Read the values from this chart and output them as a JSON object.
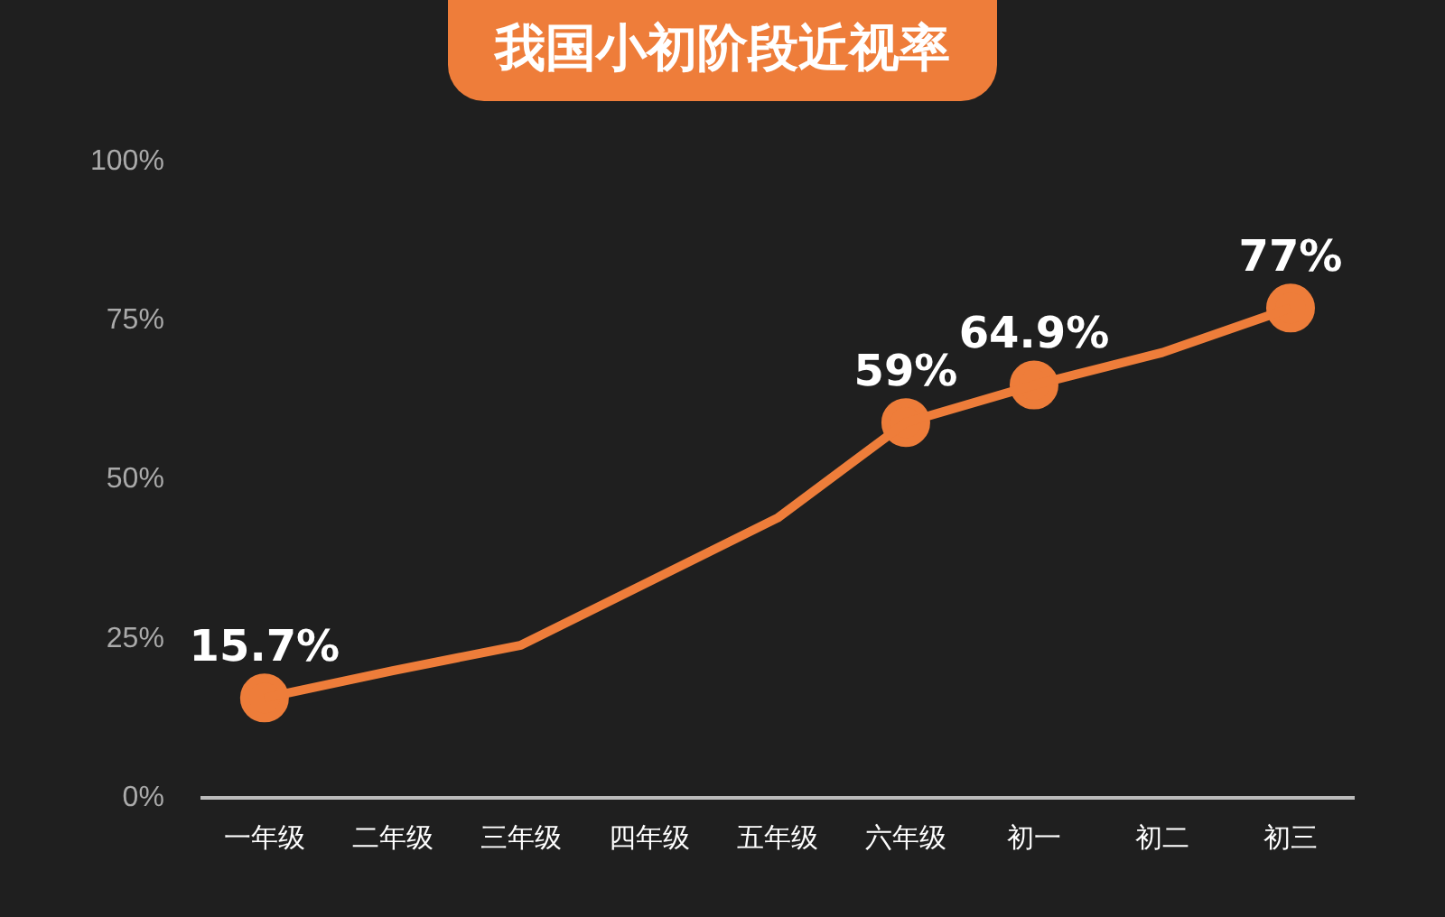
{
  "chart_data": {
    "type": "line",
    "title": "我国小初阶段近视率",
    "categories": [
      "一年级",
      "二年级",
      "三年级",
      "四年级",
      "五年级",
      "六年级",
      "初一",
      "初二",
      "初三"
    ],
    "series": [
      {
        "color": "#ee7d3a",
        "marker": "none",
        "values": [
          15.7,
          20,
          24,
          34,
          44,
          59,
          64.9,
          70,
          77
        ]
      },
      {
        "type": "scatter",
        "color": "#ee7d3a",
        "x": [
          "一年级",
          "六年级",
          "初一",
          "初三"
        ],
        "values": [
          15.7,
          59,
          64.9,
          77
        ],
        "value_labels": [
          "15.7%",
          "59%",
          "64.9%",
          "77%"
        ]
      }
    ],
    "ylim": [
      0,
      100
    ],
    "yticks": [
      {
        "value": 0,
        "label": "0%"
      },
      {
        "value": 25,
        "label": "25%"
      },
      {
        "value": 50,
        "label": "50%"
      },
      {
        "value": 75,
        "label": "75%"
      },
      {
        "value": 100,
        "label": "100%"
      }
    ],
    "grid": false,
    "legend": false,
    "marker": "circle",
    "line_style": "solid"
  }
}
